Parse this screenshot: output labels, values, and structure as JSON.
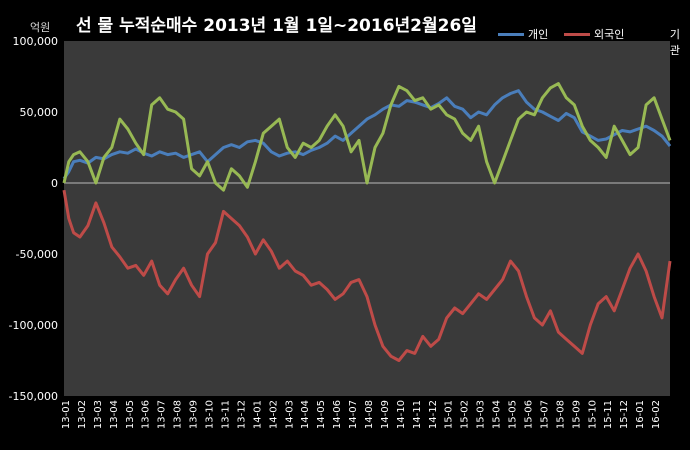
{
  "chart_data": {
    "type": "line",
    "title": "선 물 누적순매수 2013년 1월 1일~2016년2월26일",
    "unit_label": "억원",
    "ylim": [
      -150000,
      100000
    ],
    "yticks": [
      -150000,
      -100000,
      -50000,
      0,
      50000,
      100000
    ],
    "ytick_labels": [
      "-150,000",
      "-100,000",
      "-50,000",
      "0",
      "50,000",
      "100,000"
    ],
    "xlim": [
      0,
      38
    ],
    "categories": [
      "13-01",
      "13-02",
      "13-03",
      "13-04",
      "13-05",
      "13-06",
      "13-07",
      "13-08",
      "13-09",
      "13-10",
      "13-11",
      "13-12",
      "14-01",
      "14-02",
      "14-03",
      "14-04",
      "14-05",
      "14-06",
      "14-07",
      "14-08",
      "14-09",
      "14-10",
      "14-11",
      "14-12",
      "15-01",
      "15-02",
      "15-03",
      "15-04",
      "15-05",
      "15-06",
      "15-07",
      "15-08",
      "15-09",
      "15-10",
      "15-11",
      "15-12",
      "16-01",
      "16-02"
    ],
    "legend_position": "top-right",
    "grid": "none",
    "series": [
      {
        "name": "개인",
        "color": "#4a7ebb",
        "x": [
          0,
          0.3,
          0.6,
          1,
          1.5,
          2,
          2.5,
          3,
          3.5,
          4,
          4.5,
          5,
          5.5,
          6,
          6.5,
          7,
          7.5,
          8,
          8.5,
          9,
          9.5,
          10,
          10.5,
          11,
          11.5,
          12,
          12.5,
          13,
          13.5,
          14,
          14.5,
          15,
          15.5,
          16,
          16.5,
          17,
          17.5,
          18,
          18.5,
          19,
          19.5,
          20,
          20.5,
          21,
          21.5,
          22,
          22.5,
          23,
          23.5,
          24,
          24.5,
          25,
          25.5,
          26,
          26.5,
          27,
          27.5,
          28,
          28.5,
          29,
          29.5,
          30,
          30.5,
          31,
          31.5,
          32,
          32.5,
          33,
          33.5,
          34,
          34.5,
          35,
          35.5,
          36,
          36.5,
          37,
          37.5,
          38
        ],
        "values": [
          3000,
          8000,
          15000,
          16000,
          14000,
          18000,
          17000,
          20000,
          22000,
          21000,
          24000,
          21000,
          19000,
          22000,
          20000,
          21000,
          18000,
          20000,
          22000,
          15000,
          20000,
          25000,
          27000,
          25000,
          29000,
          30000,
          28000,
          22000,
          19000,
          21000,
          22000,
          20000,
          23000,
          25000,
          28000,
          33000,
          30000,
          35000,
          40000,
          45000,
          48000,
          52000,
          55000,
          54000,
          58000,
          57000,
          55000,
          53000,
          56000,
          60000,
          54000,
          52000,
          46000,
          50000,
          48000,
          55000,
          60000,
          63000,
          65000,
          57000,
          52000,
          50000,
          47000,
          44000,
          49000,
          46000,
          36000,
          33000,
          30000,
          31000,
          34000,
          37000,
          36000,
          38000,
          40000,
          37000,
          33000,
          26000
        ]
      },
      {
        "name": "외국인",
        "color": "#be4b48",
        "x": [
          0,
          0.3,
          0.6,
          1,
          1.5,
          2,
          2.5,
          3,
          3.5,
          4,
          4.5,
          5,
          5.5,
          6,
          6.5,
          7,
          7.5,
          8,
          8.5,
          9,
          9.5,
          10,
          10.5,
          11,
          11.5,
          12,
          12.5,
          13,
          13.5,
          14,
          14.5,
          15,
          15.5,
          16,
          16.5,
          17,
          17.5,
          18,
          18.5,
          19,
          19.5,
          20,
          20.5,
          21,
          21.5,
          22,
          22.5,
          23,
          23.5,
          24,
          24.5,
          25,
          25.5,
          26,
          26.5,
          27,
          27.5,
          28,
          28.5,
          29,
          29.5,
          30,
          30.5,
          31,
          31.5,
          32,
          32.5,
          33,
          33.5,
          34,
          34.5,
          35,
          35.5,
          36,
          36.5,
          37,
          37.5,
          38
        ],
        "values": [
          -5000,
          -25000,
          -35000,
          -38000,
          -30000,
          -14000,
          -28000,
          -45000,
          -52000,
          -60000,
          -58000,
          -65000,
          -55000,
          -72000,
          -78000,
          -68000,
          -60000,
          -72000,
          -80000,
          -50000,
          -42000,
          -20000,
          -25000,
          -30000,
          -38000,
          -50000,
          -40000,
          -48000,
          -60000,
          -55000,
          -62000,
          -65000,
          -72000,
          -70000,
          -75000,
          -82000,
          -78000,
          -70000,
          -68000,
          -80000,
          -100000,
          -115000,
          -122000,
          -125000,
          -118000,
          -120000,
          -108000,
          -115000,
          -110000,
          -95000,
          -88000,
          -92000,
          -85000,
          -78000,
          -82000,
          -75000,
          -68000,
          -55000,
          -62000,
          -80000,
          -95000,
          -100000,
          -90000,
          -105000,
          -110000,
          -115000,
          -120000,
          -100000,
          -85000,
          -80000,
          -90000,
          -75000,
          -60000,
          -50000,
          -62000,
          -80000,
          -95000,
          -55000
        ]
      },
      {
        "name": "기관",
        "color": "#98b954",
        "x": [
          0,
          0.3,
          0.6,
          1,
          1.5,
          2,
          2.5,
          3,
          3.5,
          4,
          4.5,
          5,
          5.5,
          6,
          6.5,
          7,
          7.5,
          8,
          8.5,
          9,
          9.5,
          10,
          10.5,
          11,
          11.5,
          12,
          12.5,
          13,
          13.5,
          14,
          14.5,
          15,
          15.5,
          16,
          16.5,
          17,
          17.5,
          18,
          18.5,
          19,
          19.5,
          20,
          20.5,
          21,
          21.5,
          22,
          22.5,
          23,
          23.5,
          24,
          24.5,
          25,
          25.5,
          26,
          26.5,
          27,
          27.5,
          28,
          28.5,
          29,
          29.5,
          30,
          30.5,
          31,
          31.5,
          32,
          32.5,
          33,
          33.5,
          34,
          34.5,
          35,
          35.5,
          36,
          36.5,
          37,
          37.5,
          38
        ],
        "values": [
          0,
          15000,
          20000,
          22000,
          15000,
          0,
          18000,
          25000,
          45000,
          38000,
          28000,
          20000,
          55000,
          60000,
          52000,
          50000,
          45000,
          10000,
          5000,
          15000,
          0,
          -5000,
          10000,
          5000,
          -3000,
          15000,
          35000,
          40000,
          45000,
          25000,
          18000,
          28000,
          25000,
          30000,
          40000,
          48000,
          40000,
          22000,
          30000,
          0,
          25000,
          35000,
          55000,
          68000,
          65000,
          58000,
          60000,
          52000,
          55000,
          48000,
          45000,
          35000,
          30000,
          40000,
          15000,
          0,
          15000,
          30000,
          45000,
          50000,
          48000,
          60000,
          67000,
          70000,
          60000,
          55000,
          40000,
          30000,
          25000,
          18000,
          40000,
          30000,
          20000,
          25000,
          55000,
          60000,
          45000,
          30000
        ]
      }
    ]
  }
}
